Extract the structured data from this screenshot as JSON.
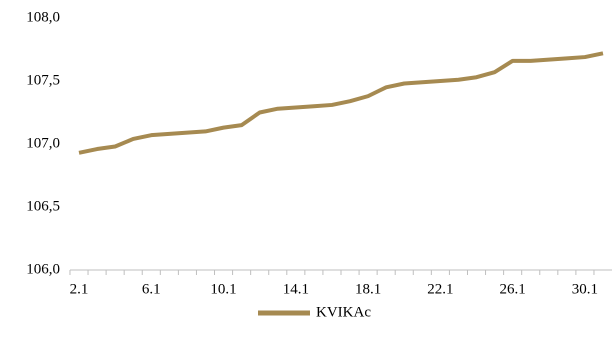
{
  "chart_data": {
    "type": "line",
    "categories": [
      "2.1",
      null,
      null,
      null,
      "6.1",
      null,
      null,
      null,
      "10.1",
      null,
      null,
      null,
      "14.1",
      null,
      null,
      null,
      "18.1",
      null,
      null,
      null,
      "22.1",
      null,
      null,
      null,
      "26.1",
      null,
      null,
      null,
      "30.1",
      null
    ],
    "series": [
      {
        "name": "KVIKAc",
        "color": "#a68a51",
        "values": [
          106.93,
          106.96,
          106.98,
          107.04,
          107.07,
          107.08,
          107.09,
          107.1,
          107.13,
          107.15,
          107.25,
          107.28,
          107.29,
          107.3,
          107.31,
          107.34,
          107.38,
          107.45,
          107.48,
          107.49,
          107.5,
          107.51,
          107.53,
          107.57,
          107.66,
          107.66,
          107.67,
          107.68,
          107.69,
          107.72
        ]
      }
    ],
    "ylim": [
      106,
      108
    ],
    "yticks": [
      {
        "value": 106,
        "label": "106,0"
      },
      {
        "value": 106.5,
        "label": "106,5"
      },
      {
        "value": 107,
        "label": "107,0"
      },
      {
        "value": 107.5,
        "label": "107,5"
      },
      {
        "value": 108,
        "label": "108,0"
      }
    ],
    "grid": false,
    "legend": "bottom"
  }
}
